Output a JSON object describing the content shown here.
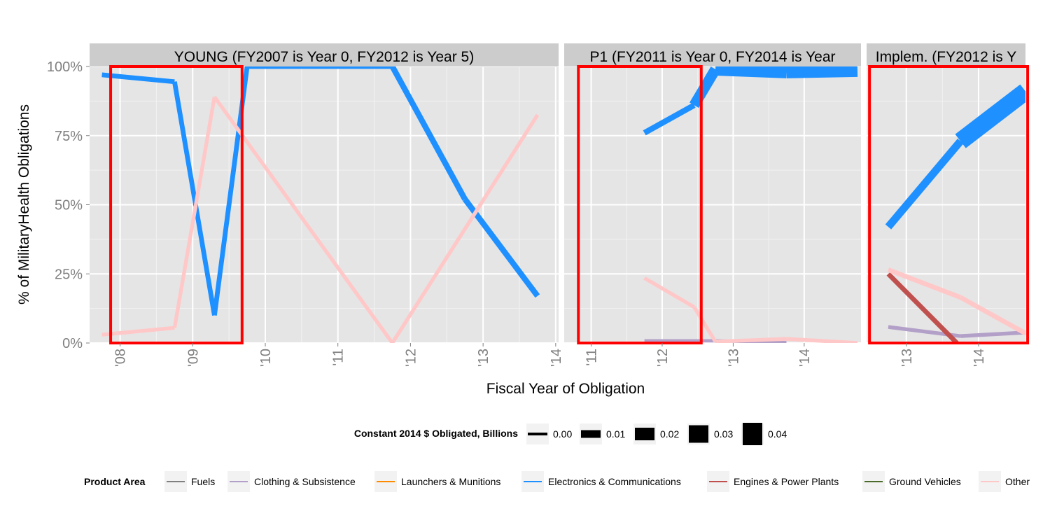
{
  "chart_data": {
    "type": "line",
    "y_label": "% of  MilitaryHealth  Obligations",
    "x_label": "Fiscal Year of Obligation",
    "y_ticks": [
      "0%",
      "25%",
      "50%",
      "75%",
      "100%"
    ],
    "ylim": [
      0,
      1
    ],
    "grid": true,
    "panels": [
      {
        "title": "YOUNG (FY2007 is Year 0, FY2012 is Year 5)",
        "xlim": [
          2007.58,
          2014.04
        ],
        "ticks": [
          {
            "v": 2008,
            "label": "'08"
          },
          {
            "v": 2009,
            "label": "'09"
          },
          {
            "v": 2010,
            "label": "'10"
          },
          {
            "v": 2011,
            "label": "'11"
          },
          {
            "v": 2012,
            "label": "'12"
          },
          {
            "v": 2013,
            "label": "'13"
          },
          {
            "v": 2014,
            "label": "'14"
          }
        ],
        "highlight_box": {
          "x": [
            2007.87,
            2009.68
          ],
          "y": [
            0,
            1
          ]
        },
        "series": [
          {
            "area": "Electronics & Communications",
            "points": [
              [
                2007.75,
                0.97,
                0.002
              ],
              [
                2008.75,
                0.945,
                0.004
              ],
              [
                2009.3,
                0.1,
                0.004
              ],
              [
                2009.75,
                1.0,
                0.004
              ],
              [
                2011.75,
                1.0,
                0.004
              ],
              [
                2012.75,
                0.52,
                0.006
              ],
              [
                2013.75,
                0.17,
                0.003
              ]
            ]
          },
          {
            "area": "Other",
            "points": [
              [
                2007.75,
                0.03,
                0.002
              ],
              [
                2008.75,
                0.055,
                0.002
              ],
              [
                2009.3,
                0.89,
                0.002
              ],
              [
                2011.75,
                0.0,
                0.002
              ],
              [
                2013.75,
                0.825,
                0.002
              ]
            ]
          }
        ]
      },
      {
        "title": "P1 (FY2011 is Year 0, FY2014 is Year",
        "xlim": [
          2010.62,
          2014.8
        ],
        "ticks": [
          {
            "v": 2011,
            "label": "'11"
          },
          {
            "v": 2012,
            "label": "'12"
          },
          {
            "v": 2013,
            "label": "'13"
          },
          {
            "v": 2014,
            "label": "'14"
          }
        ],
        "highlight_box": {
          "x": [
            2010.82,
            2012.55
          ],
          "y": [
            0,
            1
          ]
        },
        "series": [
          {
            "area": "Electronics & Communications",
            "points": [
              [
                2011.75,
                0.76,
                0.004
              ],
              [
                2012.45,
                0.86,
                0.006
              ],
              [
                2012.75,
                0.99,
                0.016
              ],
              [
                2013.75,
                0.98,
                0.02
              ],
              [
                2014.75,
                0.985,
                0.012
              ]
            ]
          },
          {
            "area": "Clothing & Subsistence",
            "points": [
              [
                2011.75,
                0.008,
                0.001
              ],
              [
                2012.75,
                0.008,
                0.001
              ],
              [
                2013.75,
                0.002,
                0.001
              ]
            ]
          },
          {
            "area": "Other",
            "points": [
              [
                2011.75,
                0.235,
                0.002
              ],
              [
                2012.45,
                0.13,
                0.002
              ],
              [
                2012.75,
                0.005,
                0.002
              ],
              [
                2013.75,
                0.015,
                0.002
              ],
              [
                2014.75,
                0.0,
                0.002
              ]
            ]
          }
        ]
      },
      {
        "title": "Implem. (FY2012 is Y",
        "xlim": [
          2012.45,
          2014.65
        ],
        "ticks": [
          {
            "v": 2013,
            "label": "'13"
          },
          {
            "v": 2014,
            "label": "'14"
          }
        ],
        "highlight_box": {
          "x": [
            2012.49,
            2014.68
          ],
          "y": [
            0,
            1
          ]
        },
        "series": [
          {
            "area": "Electronics & Communications",
            "points": [
              [
                2012.75,
                0.42,
                0.005
              ],
              [
                2013.75,
                0.73,
                0.01
              ],
              [
                2014.65,
                0.91,
                0.03
              ]
            ]
          },
          {
            "area": "Clothing & Subsistence",
            "points": [
              [
                2012.75,
                0.058,
                0.002
              ],
              [
                2013.75,
                0.025,
                0.002
              ],
              [
                2014.65,
                0.038,
                0.002
              ]
            ]
          },
          {
            "area": "Engines & Power Plants",
            "points": [
              [
                2012.75,
                0.25,
                0.004
              ],
              [
                2013.7,
                0.0,
                0.004
              ]
            ]
          },
          {
            "area": "Other",
            "points": [
              [
                2012.75,
                0.265,
                0.004
              ],
              [
                2013.75,
                0.165,
                0.004
              ],
              [
                2014.65,
                0.035,
                0.004
              ]
            ]
          }
        ]
      }
    ],
    "size_legend": {
      "title": "Constant 2014 $ Obligated, Billions",
      "entries": [
        "0.00",
        "0.01",
        "0.02",
        "0.03",
        "0.04"
      ],
      "values": [
        0.0,
        0.01,
        0.02,
        0.03,
        0.04
      ]
    },
    "color_legend": {
      "title": "Product Area",
      "entries": [
        {
          "label": "Fuels",
          "color": "#808080"
        },
        {
          "label": "Clothing & Subsistence",
          "color": "#b3a0c8"
        },
        {
          "label": "Launchers & Munitions",
          "color": "#ff8c00"
        },
        {
          "label": "Electronics & Communications",
          "color": "#1e90ff"
        },
        {
          "label": "Engines & Power Plants",
          "color": "#c0504d"
        },
        {
          "label": "Ground Vehicles",
          "color": "#4a6b2a"
        },
        {
          "label": "Other",
          "color": "#ffc8c8"
        }
      ]
    },
    "colors": {
      "panel_bg": "#e5e5e5",
      "strip_bg": "#cccccc",
      "grid": "#ffffff",
      "highlight": "#ff0000",
      "tick_text": "#7f7f7f"
    }
  }
}
